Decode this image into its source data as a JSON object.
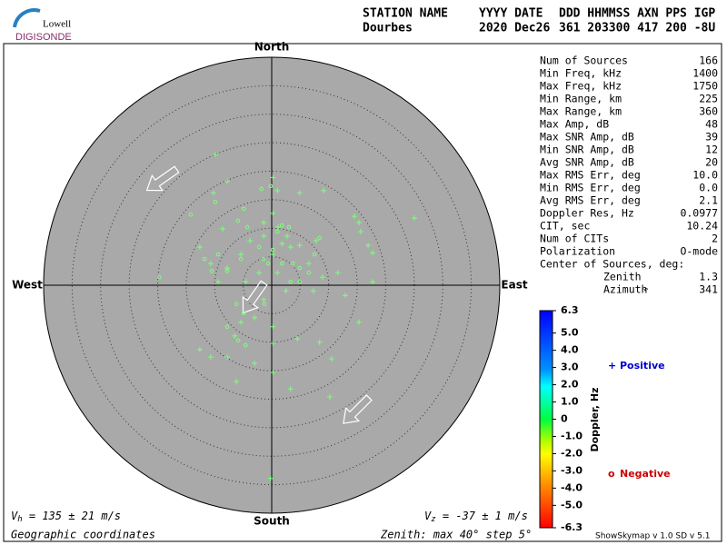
{
  "header": {
    "logo_top": "Lowell",
    "logo_bottom": "DIGISONDE",
    "labels": [
      "STATION NAME",
      "YYYY DATE",
      "DDD HHMMSS AXN PPS IGP"
    ],
    "values": [
      "Dourbes",
      "2020 Dec26",
      "361 203300 417 200 -8U"
    ]
  },
  "stats": [
    [
      "Num of Sources",
      "166"
    ],
    [
      "Min Freq, kHz",
      "1400"
    ],
    [
      "Max Freq, kHz",
      "1750"
    ],
    [
      "Min Range, km",
      "225"
    ],
    [
      "Max Range, km",
      "360"
    ],
    [
      "Max Amp, dB",
      "48"
    ],
    [
      "Max SNR Amp, dB",
      "39"
    ],
    [
      "Min SNR Amp, dB",
      "12"
    ],
    [
      "Avg SNR Amp, dB",
      "20"
    ],
    [
      "Max RMS Err, deg",
      "10.0"
    ],
    [
      "Min RMS Err, deg",
      "0.0"
    ],
    [
      "Avg RMS Err, deg",
      "2.1"
    ],
    [
      "Doppler Res, Hz",
      "0.0977"
    ],
    [
      "CIT, sec",
      "10.24"
    ],
    [
      "Num of CITs",
      "2"
    ],
    [
      "Polarization",
      "O-mode"
    ]
  ],
  "center_title": "Center of Sources, deg:",
  "center": [
    [
      "Zenith",
      "1.3"
    ],
    [
      "Azimuth",
      "341"
    ]
  ],
  "footer": {
    "vh_symbol": "V",
    "vh_sub": "h",
    "vh_text": " = 135 ± 21 m/s",
    "vz_symbol": "V",
    "vz_sub": "z",
    "vz_text": " = -37 ± 1 m/s",
    "coords": "Geographic coordinates",
    "zenith": "Zenith: max 40°  step 5°",
    "version": "ShowSkymap v 1.0   SD v 5.1"
  },
  "chart_data": {
    "type": "skymap",
    "directions": {
      "north": "North",
      "south": "South",
      "east": "East",
      "west": "West"
    },
    "xlim": [
      -40,
      40
    ],
    "ylim": [
      -40,
      40
    ],
    "rings": [
      5,
      10,
      15,
      20,
      25,
      30,
      35
    ],
    "series": [
      {
        "name": "Positive",
        "marker": "+",
        "color": "#7dff7d",
        "legend_color": "#0000cc",
        "x": [
          -9.9,
          -10.2,
          -7.8,
          1.0,
          4.9,
          9.1,
          14.5,
          15.3,
          25.0,
          15.6,
          16.9,
          17.7,
          12.9,
          11.6,
          8.9,
          7.3,
          6.5,
          4.9,
          3.3,
          2.7,
          1.1,
          1.8,
          0.2,
          -12.6,
          -10.7,
          -7.8,
          -5.4,
          -3.8,
          -1.4,
          0.2,
          -2.2,
          1.0,
          2.5,
          -1.4,
          -3.0,
          -5.4,
          -6.5,
          0.2,
          0.2,
          4.5,
          8.4,
          10.5,
          15.3,
          -12.6,
          -10.7,
          -7.8,
          -3.0,
          -6.2,
          0.2,
          3.3,
          10.2,
          -0.2,
          0.2,
          7.8,
          17.7,
          -1.4,
          -9.4,
          -4.6,
          -8.6
        ],
        "y": [
          22.9,
          16.2,
          18.2,
          16.6,
          16.2,
          16.6,
          12.1,
          11.0,
          11.8,
          9.4,
          7.0,
          0.6,
          -1.8,
          2.2,
          1.4,
          -1.0,
          3.8,
          7.0,
          6.7,
          8.6,
          10.2,
          7.3,
          12.6,
          6.7,
          3.8,
          3.0,
          5.4,
          7.8,
          8.6,
          5.4,
          2.2,
          2.2,
          -1.0,
          -2.5,
          -5.7,
          -6.5,
          -8.9,
          -7.3,
          -10.2,
          -9.4,
          -10.0,
          -12.9,
          -6.5,
          -11.3,
          -12.6,
          -12.6,
          -13.7,
          -16.9,
          -15.3,
          -18.2,
          -19.6,
          -33.9,
          18.9,
          7.8,
          5.7,
          11.0,
          0.6,
          0.6,
          9.9
        ]
      },
      {
        "name": "Negative",
        "marker": "o",
        "color": "#7dff7d",
        "legend_color": "#cc0000",
        "x": [
          -14.2,
          -19.7,
          -9.9,
          -4.9,
          -5.9,
          -4.3,
          -1.8,
          -0.2,
          -2.2,
          -1.4,
          -0.6,
          -5.4,
          -7.8,
          -9.4,
          -11.8,
          -10.5,
          -6.2,
          -4.9,
          -4.6,
          -1.3,
          0.2,
          1.0,
          1.8,
          3.7,
          4.9,
          6.5,
          7.5,
          8.4,
          3.3,
          4.9,
          -5.9,
          -7.8,
          3.0,
          1.8
        ],
        "y": [
          12.4,
          1.4,
          14.6,
          13.4,
          11.3,
          10.2,
          16.9,
          17.4,
          6.7,
          4.6,
          3.8,
          4.6,
          2.5,
          5.4,
          4.6,
          2.5,
          -3.3,
          -4.9,
          -10.5,
          -3.3,
          6.2,
          9.4,
          3.8,
          3.8,
          3.0,
          2.2,
          5.4,
          8.3,
          0.6,
          0.6,
          -9.7,
          -7.3,
          10.2,
          10.5
        ]
      }
    ],
    "colorbar": {
      "label": "Doppler, Hz",
      "ylim": [
        -6.3,
        6.3
      ],
      "yticks": [
        6.3,
        {
          "value": 5,
          "label": "5.0"
        },
        {
          "value": 4,
          "label": "4.0"
        },
        {
          "value": 3,
          "label": "3.0"
        },
        {
          "value": 2,
          "label": "2.0"
        },
        {
          "value": 1,
          "label": "1.0"
        },
        0,
        {
          "value": -1,
          "label": "-1.0"
        },
        {
          "value": -2,
          "label": "-2.0"
        },
        {
          "value": -3,
          "label": "-3.0"
        },
        {
          "value": -4,
          "label": "-4.0"
        },
        {
          "value": -5,
          "label": "-5.0"
        },
        -6.3
      ]
    }
  }
}
